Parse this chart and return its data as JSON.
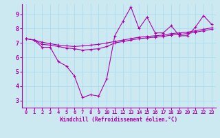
{
  "xlabel": "Windchill (Refroidissement éolien,°C)",
  "xlim": [
    -0.5,
    23.5
  ],
  "ylim": [
    2.5,
    9.7
  ],
  "xticks": [
    0,
    1,
    2,
    3,
    4,
    5,
    6,
    7,
    8,
    9,
    10,
    11,
    12,
    13,
    14,
    15,
    16,
    17,
    18,
    19,
    20,
    21,
    22,
    23
  ],
  "yticks": [
    3,
    4,
    5,
    6,
    7,
    8,
    9
  ],
  "line_color": "#aa00aa",
  "bg_color": "#cce8f0",
  "grid_color": "#aaddee",
  "series": [
    {
      "x": [
        0,
        1,
        2,
        3,
        4,
        5,
        6,
        7,
        8,
        9,
        10,
        11,
        12,
        13,
        14,
        15,
        16,
        17,
        18,
        19,
        20,
        21,
        22,
        23
      ],
      "y": [
        7.3,
        7.2,
        6.7,
        6.7,
        5.7,
        5.4,
        4.7,
        3.2,
        3.4,
        3.3,
        4.5,
        7.5,
        8.5,
        9.5,
        8.0,
        8.8,
        7.7,
        7.7,
        8.2,
        7.5,
        7.5,
        8.1,
        8.9,
        8.3
      ]
    },
    {
      "x": [
        0,
        1,
        2,
        3,
        4,
        5,
        6,
        7,
        8,
        9,
        10,
        11,
        12,
        13,
        14,
        15,
        16,
        17,
        18,
        19,
        20,
        21,
        22,
        23
      ],
      "y": [
        7.3,
        7.2,
        6.9,
        6.85,
        6.75,
        6.65,
        6.6,
        6.5,
        6.55,
        6.6,
        6.75,
        7.0,
        7.1,
        7.2,
        7.3,
        7.35,
        7.4,
        7.45,
        7.55,
        7.6,
        7.65,
        7.75,
        7.85,
        7.95
      ]
    },
    {
      "x": [
        0,
        1,
        2,
        3,
        4,
        5,
        6,
        7,
        8,
        9,
        10,
        11,
        12,
        13,
        14,
        15,
        16,
        17,
        18,
        19,
        20,
        21,
        22,
        23
      ],
      "y": [
        7.3,
        7.2,
        7.05,
        6.95,
        6.85,
        6.8,
        6.75,
        6.8,
        6.85,
        6.9,
        7.0,
        7.1,
        7.2,
        7.3,
        7.4,
        7.45,
        7.5,
        7.55,
        7.65,
        7.7,
        7.75,
        7.85,
        7.95,
        8.05
      ]
    }
  ]
}
